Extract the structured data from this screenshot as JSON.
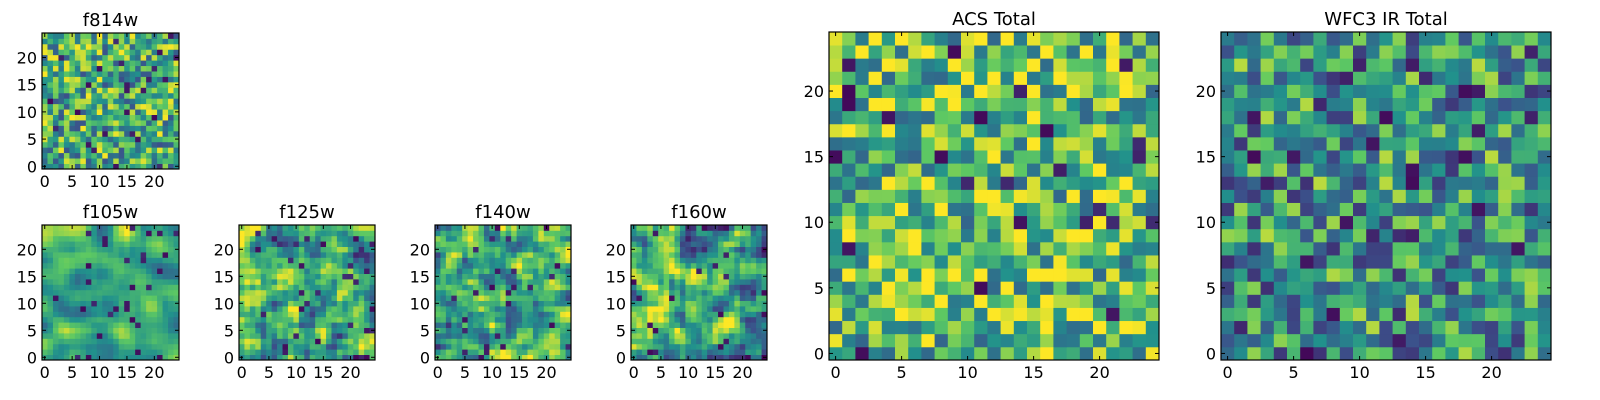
{
  "figure": {
    "colormap": "viridis",
    "colormap_stops": [
      "#440154",
      "#3b528b",
      "#21918c",
      "#5ec962",
      "#fde725"
    ],
    "background": "#ffffff"
  },
  "chart_data": [
    {
      "id": "f814w",
      "type": "heatmap",
      "title": "f814w",
      "grid": false,
      "xlim": [
        -0.5,
        24.5
      ],
      "ylim": [
        -0.5,
        24.5
      ],
      "xticks": [
        0,
        5,
        10,
        15,
        20
      ],
      "yticks": [
        0,
        5,
        10,
        15,
        20
      ],
      "xticklabels": [
        "0",
        "5",
        "10",
        "15",
        "20"
      ],
      "yticklabels": [
        "0",
        "5",
        "10",
        "15",
        "20"
      ],
      "shape": [
        25,
        25
      ],
      "value_range": [
        0,
        1
      ],
      "seed": 11,
      "smooth": 0
    },
    {
      "id": "f105w",
      "type": "heatmap",
      "title": "f105w",
      "grid": false,
      "xlim": [
        -0.5,
        24.5
      ],
      "ylim": [
        -0.5,
        24.5
      ],
      "xticks": [
        0,
        5,
        10,
        15,
        20
      ],
      "yticks": [
        0,
        5,
        10,
        15,
        20
      ],
      "xticklabels": [
        "0",
        "5",
        "10",
        "15",
        "20"
      ],
      "yticklabels": [
        "0",
        "5",
        "10",
        "15",
        "20"
      ],
      "shape": [
        25,
        25
      ],
      "value_range": [
        0,
        1
      ],
      "seed": 23,
      "smooth": 2
    },
    {
      "id": "f125w",
      "type": "heatmap",
      "title": "f125w",
      "grid": false,
      "xlim": [
        -0.5,
        24.5
      ],
      "ylim": [
        -0.5,
        24.5
      ],
      "xticks": [
        0,
        5,
        10,
        15,
        20
      ],
      "yticks": [
        0,
        5,
        10,
        15,
        20
      ],
      "xticklabels": [
        "0",
        "5",
        "10",
        "15",
        "20"
      ],
      "yticklabels": [
        "0",
        "5",
        "10",
        "15",
        "20"
      ],
      "shape": [
        25,
        25
      ],
      "value_range": [
        0,
        1
      ],
      "seed": 37,
      "smooth": 1
    },
    {
      "id": "f140w",
      "type": "heatmap",
      "title": "f140w",
      "grid": false,
      "xlim": [
        -0.5,
        24.5
      ],
      "ylim": [
        -0.5,
        24.5
      ],
      "xticks": [
        0,
        5,
        10,
        15,
        20
      ],
      "yticks": [
        0,
        5,
        10,
        15,
        20
      ],
      "xticklabels": [
        "0",
        "5",
        "10",
        "15",
        "20"
      ],
      "yticklabels": [
        "0",
        "5",
        "10",
        "15",
        "20"
      ],
      "shape": [
        25,
        25
      ],
      "value_range": [
        0,
        1
      ],
      "seed": 41,
      "smooth": 1
    },
    {
      "id": "f160w",
      "type": "heatmap",
      "title": "f160w",
      "grid": false,
      "xlim": [
        -0.5,
        24.5
      ],
      "ylim": [
        -0.5,
        24.5
      ],
      "xticks": [
        0,
        5,
        10,
        15,
        20
      ],
      "yticks": [
        0,
        5,
        10,
        15,
        20
      ],
      "xticklabels": [
        "0",
        "5",
        "10",
        "15",
        "20"
      ],
      "yticklabels": [
        "0",
        "5",
        "10",
        "15",
        "20"
      ],
      "shape": [
        25,
        25
      ],
      "value_range": [
        0,
        1
      ],
      "seed": 53,
      "smooth": 1
    },
    {
      "id": "acs-total",
      "type": "heatmap",
      "title": "ACS Total",
      "grid": false,
      "xlim": [
        -0.5,
        24.5
      ],
      "ylim": [
        -0.5,
        24.5
      ],
      "xticks": [
        0,
        5,
        10,
        15,
        20
      ],
      "yticks": [
        0,
        5,
        10,
        15,
        20
      ],
      "xticklabels": [
        "0",
        "5",
        "10",
        "15",
        "20"
      ],
      "yticklabels": [
        "0",
        "5",
        "10",
        "15",
        "20"
      ],
      "shape": [
        25,
        25
      ],
      "value_range": [
        0,
        1
      ],
      "seed": 67,
      "smooth": 0,
      "bias": 0.08
    },
    {
      "id": "wfc3-ir-total",
      "type": "heatmap",
      "title": "WFC3 IR Total",
      "grid": false,
      "xlim": [
        -0.5,
        24.5
      ],
      "ylim": [
        -0.5,
        24.5
      ],
      "xticks": [
        0,
        5,
        10,
        15,
        20
      ],
      "yticks": [
        0,
        5,
        10,
        15,
        20
      ],
      "xticklabels": [
        "0",
        "5",
        "10",
        "15",
        "20"
      ],
      "yticklabels": [
        "0",
        "5",
        "10",
        "15",
        "20"
      ],
      "shape": [
        25,
        25
      ],
      "value_range": [
        0,
        1
      ],
      "seed": 79,
      "smooth": 0,
      "bias": -0.1
    }
  ]
}
